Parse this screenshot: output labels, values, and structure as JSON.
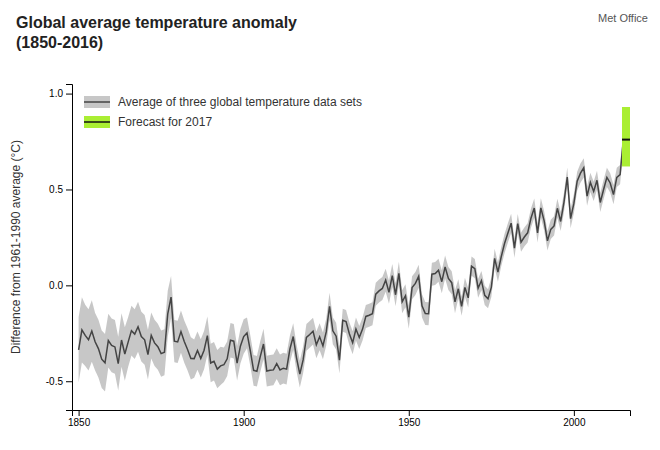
{
  "chart_data": {
    "type": "line",
    "title": "Global average temperature anomaly\n(1850-2016)",
    "ylabel": "Difference from 1961-1990 average (°C)",
    "annotations": [
      {
        "text": "Met Office"
      }
    ],
    "xlim": [
      1848,
      2017
    ],
    "xticks": [
      1850,
      1900,
      1950,
      2000
    ],
    "ylim": [
      -0.65,
      1.05
    ],
    "yticks": [
      -0.5,
      {
        "value": 0,
        "label": "0.0"
      },
      0.5,
      {
        "value": 1,
        "label": "1.0"
      }
    ],
    "grid": false,
    "legend": "upper left",
    "x": [
      1850,
      1851,
      1852,
      1853,
      1854,
      1855,
      1856,
      1857,
      1858,
      1859,
      1860,
      1861,
      1862,
      1863,
      1864,
      1865,
      1866,
      1867,
      1868,
      1869,
      1870,
      1871,
      1872,
      1873,
      1874,
      1875,
      1876,
      1877,
      1878,
      1879,
      1880,
      1881,
      1882,
      1883,
      1884,
      1885,
      1886,
      1887,
      1888,
      1889,
      1890,
      1891,
      1892,
      1893,
      1894,
      1895,
      1896,
      1897,
      1898,
      1899,
      1900,
      1901,
      1902,
      1903,
      1904,
      1905,
      1906,
      1907,
      1908,
      1909,
      1910,
      1911,
      1912,
      1913,
      1914,
      1915,
      1916,
      1917,
      1918,
      1919,
      1920,
      1921,
      1922,
      1923,
      1924,
      1925,
      1926,
      1927,
      1928,
      1929,
      1930,
      1931,
      1932,
      1933,
      1934,
      1935,
      1936,
      1937,
      1938,
      1939,
      1940,
      1941,
      1942,
      1943,
      1944,
      1945,
      1946,
      1947,
      1948,
      1949,
      1950,
      1951,
      1952,
      1953,
      1954,
      1955,
      1956,
      1957,
      1958,
      1959,
      1960,
      1961,
      1962,
      1963,
      1964,
      1965,
      1966,
      1967,
      1968,
      1969,
      1970,
      1971,
      1972,
      1973,
      1974,
      1975,
      1976,
      1977,
      1978,
      1979,
      1980,
      1981,
      1982,
      1983,
      1984,
      1985,
      1986,
      1987,
      1988,
      1989,
      1990,
      1991,
      1992,
      1993,
      1994,
      1995,
      1996,
      1997,
      1998,
      1999,
      2000,
      2001,
      2002,
      2003,
      2004,
      2005,
      2006,
      2007,
      2008,
      2009,
      2010,
      2011,
      2012,
      2013,
      2014,
      2015,
      2016
    ],
    "series": [
      {
        "name": "Average of three global temperature data sets",
        "type": "line",
        "color": "#444444",
        "values": [
          -0.336,
          -0.232,
          -0.261,
          -0.284,
          -0.238,
          -0.294,
          -0.33,
          -0.385,
          -0.404,
          -0.288,
          -0.313,
          -0.321,
          -0.408,
          -0.285,
          -0.358,
          -0.296,
          -0.236,
          -0.254,
          -0.216,
          -0.267,
          -0.284,
          -0.361,
          -0.261,
          -0.3,
          -0.32,
          -0.356,
          -0.349,
          -0.148,
          -0.061,
          -0.291,
          -0.295,
          -0.241,
          -0.293,
          -0.334,
          -0.381,
          -0.382,
          -0.34,
          -0.381,
          -0.338,
          -0.262,
          -0.405,
          -0.396,
          -0.437,
          -0.42,
          -0.414,
          -0.383,
          -0.286,
          -0.291,
          -0.406,
          -0.317,
          -0.267,
          -0.248,
          -0.34,
          -0.443,
          -0.448,
          -0.373,
          -0.306,
          -0.447,
          -0.443,
          -0.441,
          -0.408,
          -0.441,
          -0.432,
          -0.437,
          -0.332,
          -0.267,
          -0.378,
          -0.463,
          -0.389,
          -0.271,
          -0.256,
          -0.239,
          -0.31,
          -0.268,
          -0.316,
          -0.243,
          -0.109,
          -0.237,
          -0.265,
          -0.39,
          -0.182,
          -0.189,
          -0.252,
          -0.299,
          -0.228,
          -0.272,
          -0.228,
          -0.162,
          -0.156,
          -0.148,
          -0.046,
          -0.029,
          -0.016,
          0.027,
          -0.036,
          0.051,
          -0.049,
          0.063,
          -0.086,
          -0.054,
          -0.166,
          -0.012,
          0.01,
          0.047,
          -0.107,
          -0.147,
          -0.148,
          0.058,
          0.062,
          0.079,
          0.019,
          0.096,
          0.036,
          0.014,
          -0.086,
          -0.018,
          -0.109,
          -0.011,
          -0.065,
          0.1,
          0.087,
          -0.015,
          0.025,
          -0.052,
          -0.07,
          -0.011,
          0.141,
          0.069,
          0.149,
          0.218,
          0.272,
          0.324,
          0.194,
          0.322,
          0.225,
          0.252,
          0.274,
          0.35,
          0.403,
          0.274,
          0.404,
          0.336,
          0.232,
          0.292,
          0.31,
          0.402,
          0.333,
          0.433,
          0.565,
          0.348,
          0.427,
          0.543,
          0.585,
          0.613,
          0.465,
          0.537,
          0.49,
          0.548,
          0.432,
          0.5,
          0.563,
          0.534,
          0.473,
          0.563,
          0.577,
          0.762,
          0.877
        ],
        "uncertainty": [
          0.17,
          0.17,
          0.16,
          0.16,
          0.16,
          0.15,
          0.15,
          0.15,
          0.15,
          0.14,
          0.14,
          0.14,
          0.14,
          0.14,
          0.14,
          0.13,
          0.13,
          0.13,
          0.13,
          0.13,
          0.13,
          0.13,
          0.12,
          0.12,
          0.12,
          0.12,
          0.12,
          0.12,
          0.11,
          0.11,
          0.11,
          0.11,
          0.11,
          0.11,
          0.11,
          0.1,
          0.1,
          0.1,
          0.1,
          0.1,
          0.1,
          0.1,
          0.1,
          0.1,
          0.09,
          0.09,
          0.09,
          0.09,
          0.09,
          0.09,
          0.09,
          0.08,
          0.08,
          0.08,
          0.08,
          0.08,
          0.08,
          0.08,
          0.08,
          0.08,
          0.08,
          0.08,
          0.08,
          0.08,
          0.07,
          0.07,
          0.07,
          0.07,
          0.07,
          0.07,
          0.07,
          0.07,
          0.07,
          0.07,
          0.07,
          0.07,
          0.07,
          0.07,
          0.07,
          0.07,
          0.06,
          0.06,
          0.06,
          0.06,
          0.06,
          0.06,
          0.06,
          0.06,
          0.06,
          0.06,
          0.06,
          0.06,
          0.06,
          0.06,
          0.06,
          0.06,
          0.06,
          0.06,
          0.06,
          0.06,
          0.06,
          0.06,
          0.06,
          0.06,
          0.06,
          0.06,
          0.06,
          0.06,
          0.06,
          0.06,
          0.06,
          0.06,
          0.06,
          0.06,
          0.06,
          0.05,
          0.05,
          0.05,
          0.05,
          0.05,
          0.05,
          0.05,
          0.05,
          0.05,
          0.05,
          0.05,
          0.05,
          0.05,
          0.05,
          0.05,
          0.05,
          0.05,
          0.05,
          0.05,
          0.05,
          0.05,
          0.05,
          0.05,
          0.05,
          0.05,
          0.05,
          0.05,
          0.05,
          0.05,
          0.05,
          0.05,
          0.05,
          0.05,
          0.05,
          0.05,
          0.05,
          0.05,
          0.05,
          0.05,
          0.05,
          0.05,
          0.05,
          0.05,
          0.05,
          0.05,
          0.05,
          0.05,
          0.05,
          0.05,
          0.05,
          0.05,
          0.05
        ]
      },
      {
        "name": "Forecast for 2017",
        "type": "range",
        "color": "#aaee33",
        "x": [
          2017
        ],
        "values": [
          0.76
        ],
        "low": [
          0.62
        ],
        "high": [
          0.93
        ]
      }
    ]
  }
}
